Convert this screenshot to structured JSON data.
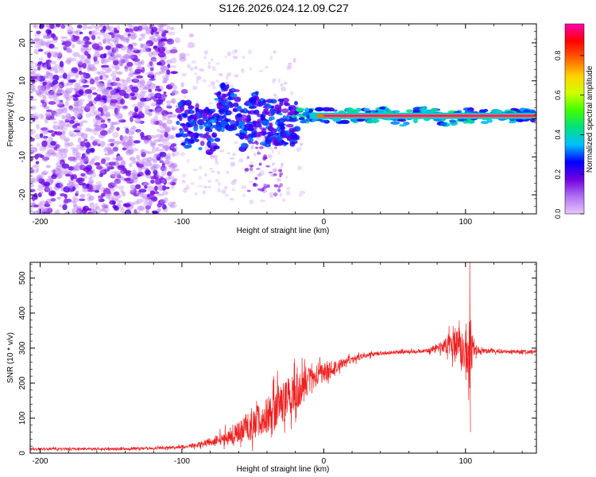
{
  "figure": {
    "title": "S126.2026.024.12.09.C27"
  },
  "chart_data": [
    {
      "type": "heatmap",
      "title": "S126.2026.024.12.09.C27",
      "xlabel": "Height of straight line (km)",
      "ylabel": "Frequency (Hz)",
      "xlim": [
        -207,
        150
      ],
      "ylim": [
        -25,
        25
      ],
      "xticks": [
        -200,
        -100,
        0,
        100
      ],
      "yticks": [
        -20,
        -10,
        0,
        10,
        20
      ],
      "xtick_labels": [
        "-200",
        "-100",
        "0",
        "100"
      ],
      "ytick_labels": [
        "-20",
        "-10",
        "0",
        "10",
        "20"
      ],
      "colorbar": {
        "label": "Normalized spectral amplitude",
        "range": [
          0,
          0.96
        ],
        "ticks": [
          0.0,
          0.2,
          0.4,
          0.6,
          0.8
        ],
        "tick_labels": [
          "0.0",
          "0.2",
          "0.4",
          "0.6",
          "0.8"
        ],
        "stops": [
          "#e8c8ff",
          "#b070f0",
          "#7000e0",
          "#0000ff",
          "#00c0ff",
          "#00e080",
          "#40ff00",
          "#d0ff00",
          "#ffd000",
          "#ff6000",
          "#ff0000",
          "#ff00b0"
        ]
      },
      "regions": [
        {
          "name": "noise",
          "x": [
            -207,
            -105
          ],
          "freq": [
            -25,
            25
          ],
          "amplitude": 0.15
        },
        {
          "name": "transition",
          "x": [
            -105,
            -20
          ],
          "freq_range": [
            -20,
            7
          ],
          "amplitude": 0.35
        },
        {
          "name": "carrier",
          "x": [
            -20,
            150
          ],
          "freq": 0.8,
          "amplitude": 0.95
        }
      ]
    },
    {
      "type": "line",
      "xlabel": "Height of straight line (km)",
      "ylabel": "SNR (10 * v/v)",
      "xlim": [
        -207,
        150
      ],
      "ylim": [
        0,
        545
      ],
      "xticks": [
        -200,
        -100,
        0,
        100
      ],
      "yticks": [
        0,
        100,
        200,
        300,
        400,
        500
      ],
      "xtick_labels": [
        "-200",
        "-100",
        "0",
        "100"
      ],
      "ytick_labels": [
        "0",
        "100",
        "200",
        "300",
        "400",
        "500"
      ],
      "color": "#ee2020",
      "envelope": {
        "x": [
          -207,
          -150,
          -110,
          -95,
          -80,
          -65,
          -50,
          -40,
          -30,
          -20,
          -10,
          0,
          10,
          20,
          30,
          40,
          50,
          60,
          70,
          80,
          85,
          90,
          95,
          100,
          103,
          105,
          110,
          120,
          130,
          150
        ],
        "mean": [
          12,
          12,
          15,
          20,
          30,
          50,
          80,
          110,
          145,
          175,
          210,
          230,
          250,
          268,
          280,
          285,
          288,
          290,
          292,
          298,
          305,
          315,
          315,
          290,
          295,
          300,
          292,
          291,
          290,
          290
        ],
        "amplitude": [
          6,
          6,
          7,
          10,
          20,
          45,
          80,
          100,
          110,
          100,
          70,
          45,
          30,
          20,
          12,
          10,
          10,
          10,
          10,
          20,
          40,
          70,
          85,
          110,
          250,
          40,
          12,
          10,
          10,
          10
        ]
      },
      "spikes": [
        {
          "x": 103,
          "y": 545
        },
        {
          "x": 103.5,
          "y": 60
        }
      ]
    }
  ]
}
